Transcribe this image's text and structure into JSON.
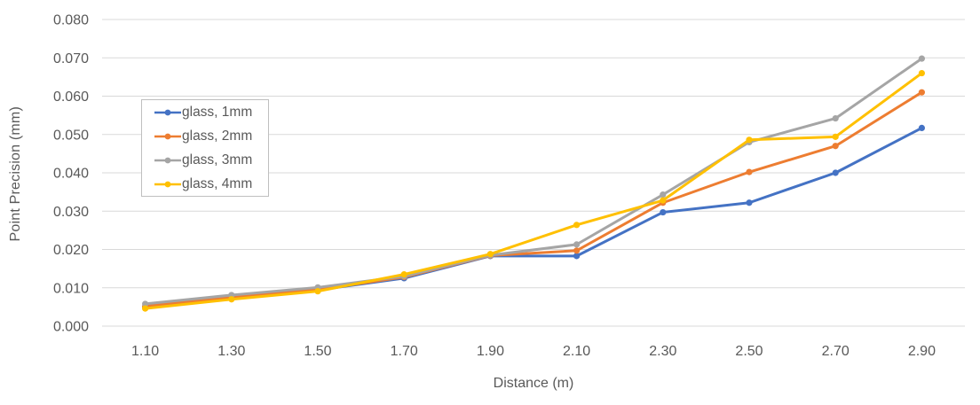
{
  "chart_data": {
    "type": "line",
    "title": "",
    "xlabel": "Distance (m)",
    "ylabel": "Point Precision (mm)",
    "categories": [
      "1.10",
      "1.30",
      "1.50",
      "1.70",
      "1.90",
      "2.10",
      "2.30",
      "2.50",
      "2.70",
      "2.90"
    ],
    "series": [
      {
        "name": "glass, 1mm",
        "color": "#4472C4",
        "values": [
          0.005,
          0.0073,
          0.0094,
          0.0125,
          0.0183,
          0.0183,
          0.0297,
          0.0322,
          0.04,
          0.0517
        ]
      },
      {
        "name": "glass, 2mm",
        "color": "#ED7D31",
        "values": [
          0.0052,
          0.0075,
          0.0095,
          0.0128,
          0.0184,
          0.0197,
          0.0322,
          0.0402,
          0.047,
          0.061
        ]
      },
      {
        "name": "glass, 3mm",
        "color": "#A5A5A5",
        "values": [
          0.0058,
          0.0081,
          0.0101,
          0.013,
          0.0185,
          0.0213,
          0.0343,
          0.048,
          0.0542,
          0.0698
        ]
      },
      {
        "name": "glass, 4mm",
        "color": "#FFC000",
        "values": [
          0.0046,
          0.007,
          0.0091,
          0.0135,
          0.0188,
          0.0264,
          0.0328,
          0.0486,
          0.0494,
          0.066
        ]
      }
    ],
    "ylim": [
      0,
      0.08
    ],
    "y_tick_step": 0.01,
    "y_ticks": [
      "0.000",
      "0.010",
      "0.020",
      "0.030",
      "0.040",
      "0.050",
      "0.060",
      "0.070",
      "0.080"
    ],
    "grid": true,
    "legend_position": "inside-upper-left",
    "marker": "circle"
  },
  "styles": {
    "axis_text_color": "#595959",
    "gridline_color": "#D9D9D9",
    "legend_border_color": "#BFBFBF",
    "background": "#FFFFFF"
  }
}
